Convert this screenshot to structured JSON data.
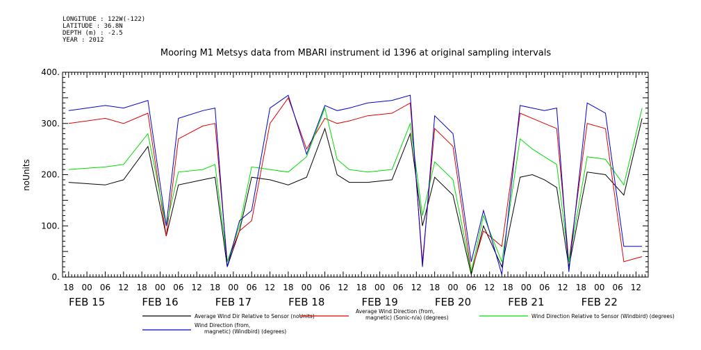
{
  "header": {
    "meta_lines": [
      "LONGITUDE : 122W(-122)",
      "LATITUDE : 36.8N",
      "DEPTH (m) : -2.5",
      "YEAR : 2012"
    ]
  },
  "chart_data": {
    "type": "line",
    "title": "Mooring M1 Metsys data from MBARI instrument id 1396 at original sampling intervals",
    "ylabel": "noUnits",
    "ylim": [
      0,
      400
    ],
    "yticks": [
      0,
      100,
      200,
      300,
      400
    ],
    "yticklabels": [
      "0.",
      "100.",
      "200.",
      "300.",
      "400."
    ],
    "xlim": [
      "2012-02-14T16:00",
      "2012-02-22T16:00"
    ],
    "xtick_hours": [
      "18",
      "00",
      "06",
      "12",
      "18",
      "00",
      "06",
      "12",
      "18",
      "00",
      "06",
      "12",
      "18",
      "00",
      "06",
      "12",
      "18",
      "00",
      "06",
      "12",
      "18",
      "00",
      "06",
      "12",
      "18",
      "00",
      "06",
      "12",
      "18",
      "00",
      "06",
      "12"
    ],
    "date_labels": [
      "FEB 15",
      "FEB 16",
      "FEB 17",
      "FEB 18",
      "FEB 19",
      "FEB 20",
      "FEB 21",
      "FEB 22"
    ],
    "legend_placement": "bottom",
    "series": [
      {
        "name": "Average Wind Dir Relative to Sensor (noUnits)",
        "color": "#000000",
        "x": [
          "2012-02-14T18:00",
          "2012-02-15T06:00",
          "2012-02-15T12:00",
          "2012-02-15T20:00",
          "2012-02-16T02:00",
          "2012-02-16T06:00",
          "2012-02-16T14:00",
          "2012-02-16T18:00",
          "2012-02-16T22:00",
          "2012-02-17T02:00",
          "2012-02-17T06:00",
          "2012-02-17T12:00",
          "2012-02-17T18:00",
          "2012-02-18T00:00",
          "2012-02-18T06:00",
          "2012-02-18T10:00",
          "2012-02-18T14:00",
          "2012-02-18T20:00",
          "2012-02-19T04:00",
          "2012-02-19T10:00",
          "2012-02-19T14:00",
          "2012-02-19T18:00",
          "2012-02-20T00:00",
          "2012-02-20T06:00",
          "2012-02-20T10:00",
          "2012-02-20T16:00",
          "2012-02-20T22:00",
          "2012-02-21T02:00",
          "2012-02-21T06:00",
          "2012-02-21T10:00",
          "2012-02-21T14:00",
          "2012-02-21T20:00",
          "2012-02-22T02:00",
          "2012-02-22T08:00",
          "2012-02-22T14:00"
        ],
        "y": [
          185,
          180,
          190,
          255,
          80,
          180,
          190,
          195,
          20,
          90,
          195,
          190,
          180,
          195,
          290,
          200,
          185,
          185,
          190,
          280,
          100,
          195,
          160,
          5,
          100,
          20,
          195,
          200,
          190,
          175,
          20,
          205,
          200,
          160,
          310
        ]
      },
      {
        "name": "Average Wind Direction (from, magnetic) (Sonic-n/a) (degrees)",
        "color": "#dd0000",
        "x": [
          "2012-02-14T18:00",
          "2012-02-15T06:00",
          "2012-02-15T12:00",
          "2012-02-15T20:00",
          "2012-02-16T02:00",
          "2012-02-16T06:00",
          "2012-02-16T14:00",
          "2012-02-16T18:00",
          "2012-02-16T22:00",
          "2012-02-17T02:00",
          "2012-02-17T06:00",
          "2012-02-17T12:00",
          "2012-02-17T18:00",
          "2012-02-18T00:00",
          "2012-02-18T06:00",
          "2012-02-18T10:00",
          "2012-02-18T14:00",
          "2012-02-18T20:00",
          "2012-02-19T04:00",
          "2012-02-19T10:00",
          "2012-02-19T14:00",
          "2012-02-19T18:00",
          "2012-02-20T00:00",
          "2012-02-20T06:00",
          "2012-02-20T10:00",
          "2012-02-20T16:00",
          "2012-02-20T22:00",
          "2012-02-21T02:00",
          "2012-02-21T06:00",
          "2012-02-21T10:00",
          "2012-02-21T14:00",
          "2012-02-21T20:00",
          "2012-02-22T02:00",
          "2012-02-22T08:00",
          "2012-02-22T14:00"
        ],
        "y": [
          300,
          310,
          300,
          320,
          80,
          270,
          295,
          300,
          30,
          90,
          110,
          300,
          350,
          250,
          310,
          300,
          305,
          315,
          320,
          340,
          30,
          290,
          255,
          10,
          90,
          60,
          320,
          310,
          300,
          290,
          30,
          300,
          290,
          30,
          40
        ]
      },
      {
        "name": "Wind Direction Relative to Sensor (Windbird) (degrees)",
        "color": "#00dd00",
        "x": [
          "2012-02-14T18:00",
          "2012-02-15T06:00",
          "2012-02-15T12:00",
          "2012-02-15T20:00",
          "2012-02-16T02:00",
          "2012-02-16T06:00",
          "2012-02-16T14:00",
          "2012-02-16T18:00",
          "2012-02-16T22:00",
          "2012-02-17T02:00",
          "2012-02-17T06:00",
          "2012-02-17T12:00",
          "2012-02-17T18:00",
          "2012-02-18T00:00",
          "2012-02-18T06:00",
          "2012-02-18T10:00",
          "2012-02-18T14:00",
          "2012-02-18T20:00",
          "2012-02-19T04:00",
          "2012-02-19T10:00",
          "2012-02-19T14:00",
          "2012-02-19T18:00",
          "2012-02-20T00:00",
          "2012-02-20T06:00",
          "2012-02-20T10:00",
          "2012-02-20T16:00",
          "2012-02-20T22:00",
          "2012-02-21T02:00",
          "2012-02-21T06:00",
          "2012-02-21T10:00",
          "2012-02-21T14:00",
          "2012-02-21T20:00",
          "2012-02-22T02:00",
          "2012-02-22T08:00",
          "2012-02-22T14:00"
        ],
        "y": [
          210,
          215,
          220,
          280,
          100,
          205,
          210,
          220,
          30,
          100,
          215,
          210,
          205,
          235,
          330,
          230,
          210,
          205,
          210,
          300,
          120,
          225,
          190,
          10,
          120,
          30,
          270,
          250,
          235,
          220,
          30,
          235,
          230,
          180,
          330
        ]
      },
      {
        "name": "Wind Direction (from, magnetic) (Windbird) (degrees)",
        "color": "#0000cc",
        "x": [
          "2012-02-14T18:00",
          "2012-02-15T06:00",
          "2012-02-15T12:00",
          "2012-02-15T20:00",
          "2012-02-16T02:00",
          "2012-02-16T06:00",
          "2012-02-16T14:00",
          "2012-02-16T18:00",
          "2012-02-16T22:00",
          "2012-02-17T02:00",
          "2012-02-17T06:00",
          "2012-02-17T12:00",
          "2012-02-17T18:00",
          "2012-02-18T00:00",
          "2012-02-18T06:00",
          "2012-02-18T10:00",
          "2012-02-18T14:00",
          "2012-02-18T20:00",
          "2012-02-19T04:00",
          "2012-02-19T10:00",
          "2012-02-19T14:00",
          "2012-02-19T18:00",
          "2012-02-20T00:00",
          "2012-02-20T06:00",
          "2012-02-20T10:00",
          "2012-02-20T16:00",
          "2012-02-20T22:00",
          "2012-02-21T02:00",
          "2012-02-21T06:00",
          "2012-02-21T10:00",
          "2012-02-21T14:00",
          "2012-02-21T20:00",
          "2012-02-22T02:00",
          "2012-02-22T08:00",
          "2012-02-22T14:00"
        ],
        "y": [
          325,
          335,
          330,
          345,
          100,
          310,
          325,
          330,
          20,
          110,
          130,
          330,
          355,
          240,
          335,
          325,
          330,
          340,
          345,
          355,
          20,
          315,
          280,
          30,
          130,
          5,
          335,
          330,
          325,
          330,
          10,
          340,
          320,
          60,
          60
        ]
      }
    ]
  }
}
